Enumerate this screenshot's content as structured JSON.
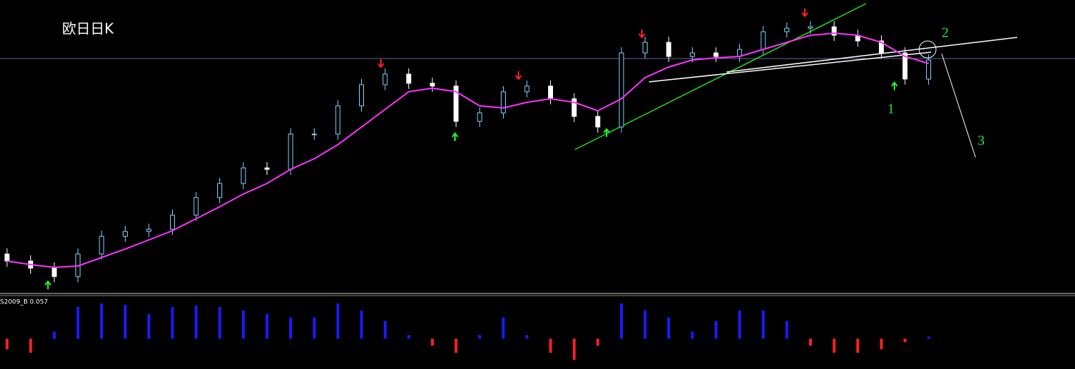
{
  "chart_data": [
    {
      "type": "candlestick",
      "title": "欧日日K",
      "open": [
        55,
        45,
        35,
        23,
        55,
        80,
        87,
        90,
        110,
        135,
        155,
        177,
        175,
        225,
        225,
        265,
        295,
        310,
        297,
        293,
        243,
        255,
        285,
        293,
        275,
        250,
        235,
        340,
        355,
        335,
        340,
        335,
        345,
        370,
        375,
        377,
        365,
        357,
        340,
        303
      ],
      "high": [
        63,
        53,
        43,
        63,
        88,
        95,
        98,
        118,
        143,
        163,
        185,
        185,
        233,
        233,
        273,
        303,
        318,
        318,
        305,
        301,
        263,
        293,
        301,
        301,
        283,
        258,
        348,
        363,
        363,
        348,
        348,
        353,
        378,
        383,
        385,
        385,
        373,
        365,
        348,
        338
      ],
      "low": [
        37,
        27,
        15,
        15,
        47,
        72,
        79,
        82,
        102,
        127,
        147,
        167,
        167,
        217,
        217,
        257,
        287,
        289,
        285,
        235,
        235,
        247,
        277,
        267,
        242,
        227,
        227,
        332,
        327,
        327,
        327,
        327,
        337,
        362,
        367,
        357,
        349,
        332,
        295,
        295
      ],
      "close": [
        45,
        35,
        23,
        55,
        80,
        87,
        90,
        110,
        135,
        155,
        177,
        175,
        225,
        225,
        265,
        295,
        310,
        297,
        293,
        243,
        255,
        285,
        293,
        275,
        250,
        235,
        340,
        355,
        335,
        340,
        335,
        345,
        370,
        375,
        377,
        365,
        357,
        340,
        303,
        330
      ],
      "ma": [
        45,
        40,
        36,
        38,
        50,
        62,
        75,
        88,
        105,
        122,
        140,
        155,
        175,
        190,
        210,
        235,
        260,
        285,
        290,
        285,
        265,
        262,
        270,
        275,
        270,
        258,
        275,
        305,
        320,
        330,
        333,
        335,
        345,
        355,
        365,
        368,
        365,
        355,
        335,
        325
      ],
      "ma_color": "#ff33ff",
      "up_color": "#7fd8ff",
      "down_color": "#ffffff",
      "price_line": 332,
      "ylim": [
        0,
        415
      ],
      "annotations": [
        "1",
        "2",
        "3"
      ]
    },
    {
      "type": "bar",
      "label": "S2009_B 0.057",
      "values": [
        -0.015,
        -0.02,
        0.01,
        0.045,
        0.05,
        0.048,
        0.035,
        0.045,
        0.047,
        0.045,
        0.04,
        0.035,
        0.03,
        0.03,
        0.05,
        0.04,
        0.025,
        0.005,
        -0.01,
        -0.02,
        0.005,
        0.03,
        0.005,
        -0.02,
        -0.03,
        -0.01,
        0.05,
        0.04,
        0.03,
        0.01,
        0.025,
        0.04,
        0.04,
        0.025,
        -0.01,
        -0.02,
        -0.02,
        -0.015,
        -0.005,
        0.003
      ],
      "pos_color": "#1a1aff",
      "neg_color": "#ff2020",
      "ylim": [
        -0.042,
        0.055
      ]
    }
  ]
}
